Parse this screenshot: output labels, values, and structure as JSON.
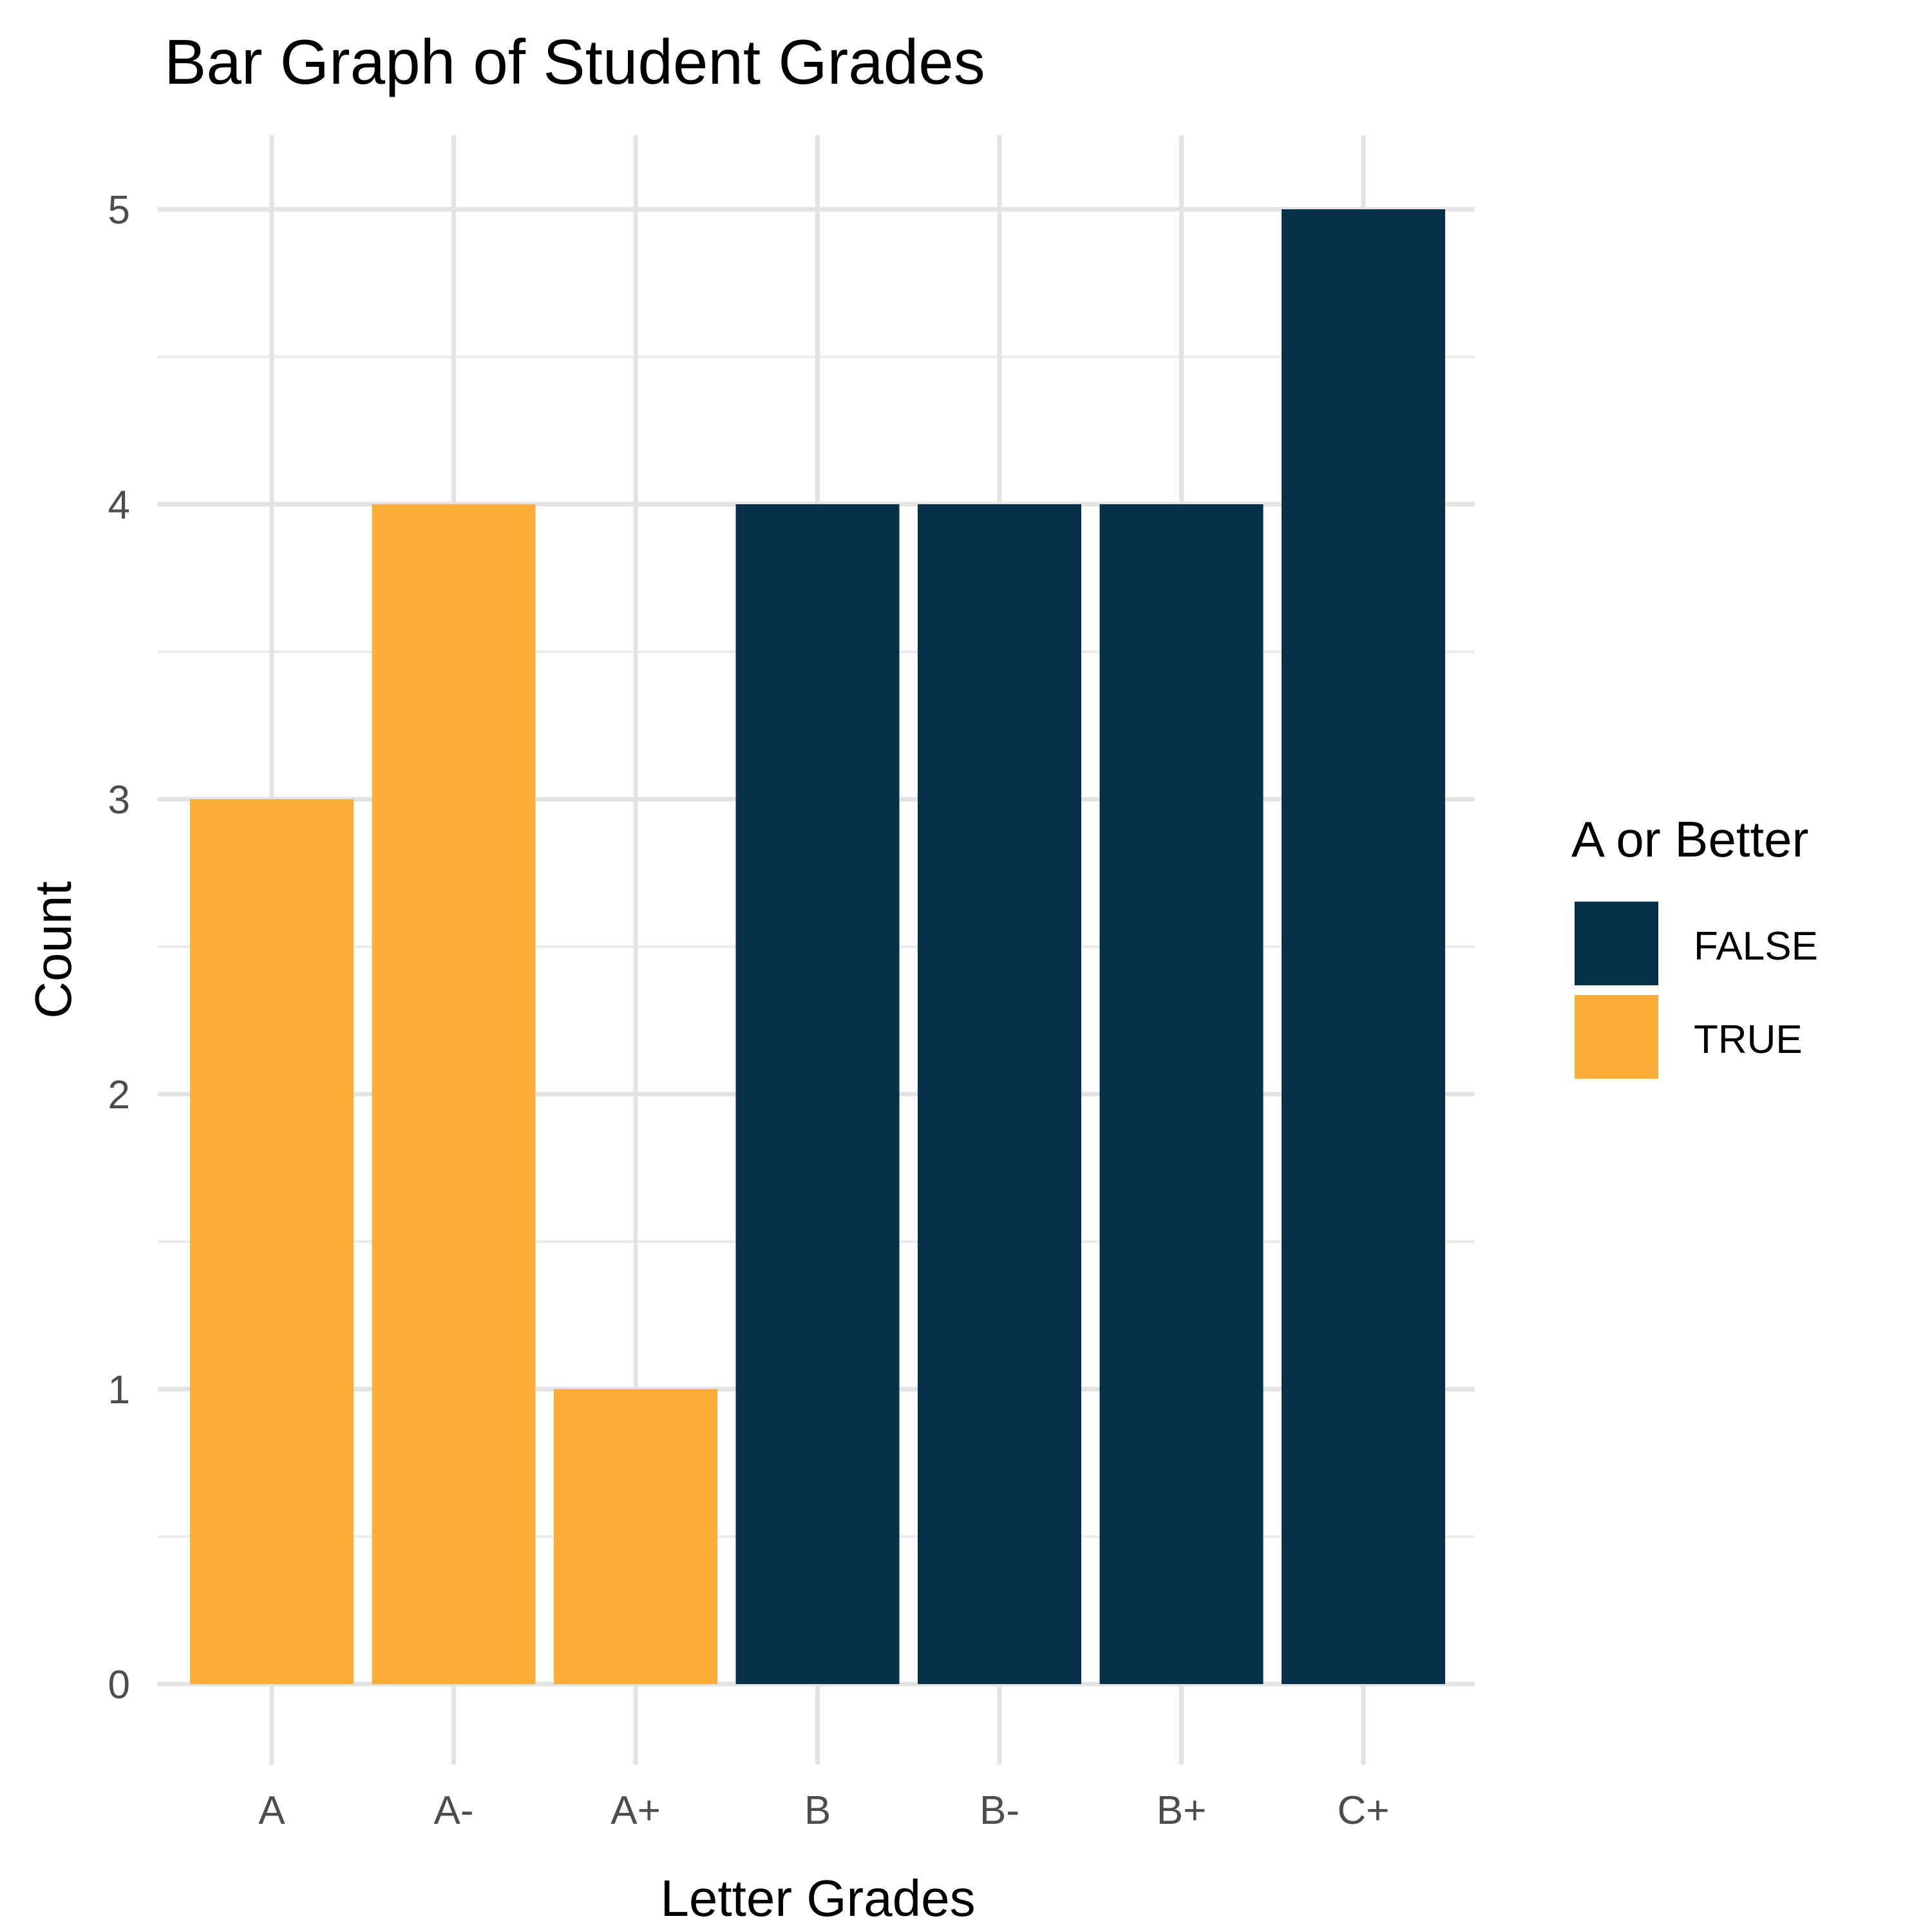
{
  "chart_data": {
    "type": "bar",
    "title": "Bar Graph of Student Grades",
    "xlabel": "Letter Grades",
    "ylabel": "Count",
    "categories": [
      "A",
      "A-",
      "A+",
      "B",
      "B-",
      "B+",
      "C+"
    ],
    "values": [
      3,
      4,
      1,
      4,
      4,
      4,
      5
    ],
    "fill_group": [
      "TRUE",
      "TRUE",
      "TRUE",
      "FALSE",
      "FALSE",
      "FALSE",
      "FALSE"
    ],
    "ylim": [
      0,
      5
    ],
    "yticks": [
      "0",
      "1",
      "2",
      "3",
      "4",
      "5"
    ],
    "grid": true,
    "legend": {
      "title": "A or Better",
      "placement": "right",
      "entries": [
        {
          "label": "FALSE",
          "color": "#062f4a"
        },
        {
          "label": "TRUE",
          "color": "#fdae3a"
        }
      ]
    }
  }
}
